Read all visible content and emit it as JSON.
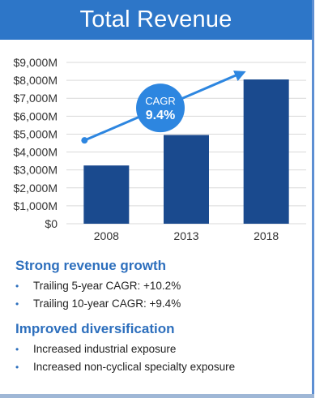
{
  "header": {
    "title": "Total Revenue"
  },
  "chart_data": {
    "type": "bar",
    "categories": [
      "2008",
      "2013",
      "2018"
    ],
    "values": [
      3250,
      4950,
      8050
    ],
    "unit": "M",
    "ylim": [
      0,
      9000
    ],
    "yticks": [
      "$0",
      "$1,000M",
      "$2,000M",
      "$3,000M",
      "$4,000M",
      "$5,000M",
      "$6,000M",
      "$7,000M",
      "$8,000M",
      "$9,000M"
    ],
    "grid": true,
    "bar_color": "#1a4a8e",
    "annotation": {
      "label": "CAGR",
      "value": "9.4%",
      "color": "#2d86e0"
    }
  },
  "sections": [
    {
      "heading": "Strong revenue growth",
      "bullets": [
        "Trailing 5-year CAGR: +10.2%",
        "Trailing 10-year CAGR: +9.4%"
      ]
    },
    {
      "heading": "Improved diversification",
      "bullets": [
        "Increased industrial exposure",
        "Increased non-cyclical specialty exposure"
      ]
    }
  ],
  "bullet_glyph": "•"
}
